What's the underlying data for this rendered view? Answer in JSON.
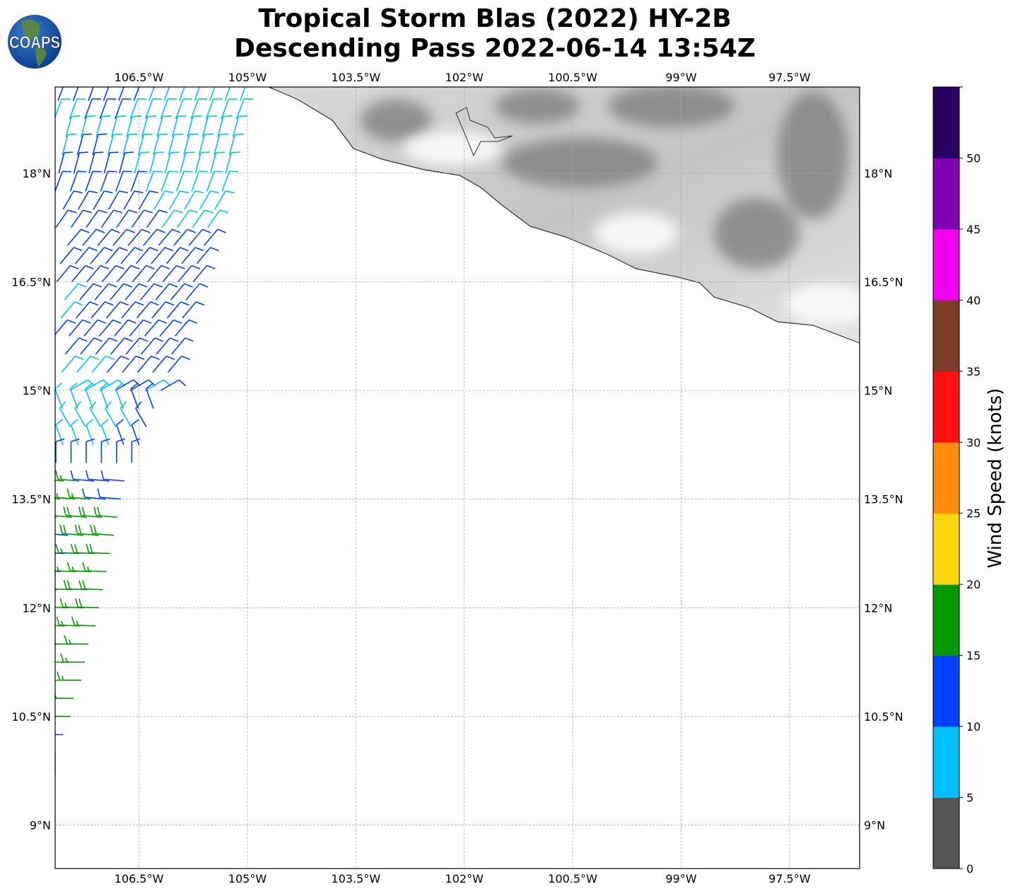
{
  "title": {
    "line1": "Tropical Storm Blas (2022) HY-2B",
    "line2": "Descending Pass 2022-06-14 13:54Z"
  },
  "logo": {
    "text": "COAPS"
  },
  "chart_data": {
    "type": "map-wind-barbs",
    "lon_range": [
      -107.66,
      -96.53
    ],
    "lat_range": [
      8.4,
      19.19
    ],
    "lon_ticks": [
      -106.5,
      -105,
      -103.5,
      -102,
      -100.5,
      -99,
      -97.5
    ],
    "lon_tick_labels": [
      "106.5°W",
      "105°W",
      "103.5°W",
      "102°W",
      "100.5°W",
      "99°W",
      "97.5°W"
    ],
    "lat_ticks": [
      18,
      16.5,
      15,
      13.5,
      12,
      10.5,
      9
    ],
    "lat_tick_labels": [
      "18°N",
      "16.5°N",
      "15°N",
      "13.5°N",
      "12°N",
      "10.5°N",
      "9°N"
    ],
    "grid": true,
    "colorbar": {
      "label": "Wind Speed (knots)",
      "ticks": [
        "0",
        "5",
        "10",
        "15",
        "20",
        "25",
        "30",
        "35",
        "40",
        "45",
        "50"
      ],
      "bounds": [
        0,
        5,
        10,
        15,
        20,
        25,
        30,
        35,
        40,
        45,
        50,
        55
      ],
      "colors": [
        "#555555",
        "#00bfff",
        "#0040ff",
        "#009900",
        "#ffd710",
        "#ff8c0a",
        "#ff1010",
        "#803b28",
        "#f000f0",
        "#8000b0",
        "#2a0060"
      ]
    },
    "barb_spacing_deg": 0.21,
    "barb_rows": [
      {
        "lat": 19.0,
        "lon_east": -105.1,
        "staff_dir": 20,
        "speeds": [
          12,
          12,
          12,
          12,
          12,
          12,
          8,
          8,
          8,
          8,
          8,
          8,
          8
        ]
      },
      {
        "lat": 18.75,
        "lon_east": -105.15,
        "staff_dir": 20,
        "speeds": [
          8,
          8,
          12,
          12,
          12,
          8,
          8,
          8,
          8,
          8,
          8,
          8,
          8
        ]
      },
      {
        "lat": 18.5,
        "lon_east": -105.2,
        "staff_dir": 15,
        "speeds": [
          8,
          8,
          8,
          8,
          8,
          8,
          8,
          8,
          8,
          8,
          8,
          8
        ]
      },
      {
        "lat": 18.25,
        "lon_east": -105.25,
        "staff_dir": 15,
        "speeds": [
          8,
          12,
          12,
          8,
          8,
          8,
          8,
          8,
          8,
          8,
          8,
          8
        ]
      },
      {
        "lat": 18.0,
        "lon_east": -105.3,
        "staff_dir": 15,
        "speeds": [
          12,
          12,
          12,
          12,
          12,
          8,
          8,
          8,
          8,
          8,
          8,
          8
        ]
      },
      {
        "lat": 17.75,
        "lon_east": -105.35,
        "staff_dir": 20,
        "speeds": [
          12,
          12,
          12,
          12,
          12,
          12,
          8,
          8,
          8,
          8,
          8,
          8
        ]
      },
      {
        "lat": 17.5,
        "lon_east": -105.45,
        "staff_dir": 30,
        "speeds": [
          12,
          12,
          12,
          12,
          12,
          12,
          8,
          8,
          8,
          8,
          8
        ]
      },
      {
        "lat": 17.25,
        "lon_east": -105.55,
        "staff_dir": 35,
        "speeds": [
          12,
          12,
          12,
          12,
          12,
          12,
          12,
          8,
          8,
          8,
          8
        ]
      },
      {
        "lat": 17.0,
        "lon_east": -105.6,
        "staff_dir": 40,
        "speeds": [
          12,
          12,
          12,
          12,
          12,
          12,
          12,
          12,
          12,
          12
        ]
      },
      {
        "lat": 16.75,
        "lon_east": -105.7,
        "staff_dir": 40,
        "speeds": [
          12,
          12,
          12,
          12,
          12,
          12,
          12,
          12,
          12,
          12
        ]
      },
      {
        "lat": 16.5,
        "lon_east": -105.75,
        "staff_dir": 40,
        "speeds": [
          12,
          12,
          12,
          12,
          12,
          12,
          12,
          12,
          12,
          12
        ]
      },
      {
        "lat": 16.25,
        "lon_east": -105.85,
        "staff_dir": 40,
        "speeds": [
          8,
          12,
          12,
          12,
          12,
          12,
          12,
          12,
          12
        ]
      },
      {
        "lat": 16.0,
        "lon_east": -105.9,
        "staff_dir": 40,
        "speeds": [
          8,
          12,
          12,
          12,
          12,
          12,
          12,
          12,
          12
        ]
      },
      {
        "lat": 15.75,
        "lon_east": -106.0,
        "staff_dir": 40,
        "speeds": [
          12,
          12,
          12,
          12,
          12,
          12,
          12,
          12,
          12
        ]
      },
      {
        "lat": 15.5,
        "lon_east": -106.05,
        "staff_dir": 40,
        "speeds": [
          12,
          12,
          12,
          12,
          12,
          12,
          12,
          12
        ]
      },
      {
        "lat": 15.25,
        "lon_east": -106.1,
        "staff_dir": 40,
        "speeds": [
          8,
          8,
          8,
          12,
          12,
          12,
          12,
          12
        ]
      },
      {
        "lat": 15.0,
        "lon_east": -106.2,
        "staff_dir": 60,
        "speeds": [
          8,
          8,
          8,
          12,
          12,
          8,
          12
        ]
      },
      {
        "lat": 14.75,
        "lon_east": -106.3,
        "staff_dir": 340,
        "speeds": [
          8,
          8,
          8,
          8,
          8,
          12,
          12
        ]
      },
      {
        "lat": 14.5,
        "lon_east": -106.4,
        "staff_dir": 330,
        "speeds": [
          8,
          8,
          8,
          8,
          8,
          8,
          12
        ]
      },
      {
        "lat": 14.25,
        "lon_east": -106.5,
        "staff_dir": 340,
        "speeds": [
          8,
          8,
          8,
          8,
          12,
          12
        ]
      },
      {
        "lat": 14.0,
        "lon_east": -106.6,
        "staff_dir": 0,
        "speeds": [
          12,
          12,
          12,
          12,
          12,
          12
        ]
      },
      {
        "lat": 13.75,
        "lon_east": -106.7,
        "staff_dir": 275,
        "speeds": [
          16,
          16,
          12,
          12,
          12
        ]
      },
      {
        "lat": 13.5,
        "lon_east": -106.75,
        "staff_dir": 275,
        "speeds": [
          16,
          16,
          16,
          12,
          12
        ]
      },
      {
        "lat": 13.25,
        "lon_east": -106.8,
        "staff_dir": 275,
        "speeds": [
          16,
          18,
          18,
          18,
          18
        ]
      },
      {
        "lat": 13.0,
        "lon_east": -106.85,
        "staff_dir": 275,
        "speeds": [
          12,
          18,
          18,
          18
        ]
      },
      {
        "lat": 12.75,
        "lon_east": -106.9,
        "staff_dir": 272,
        "speeds": [
          12,
          16,
          18,
          18
        ]
      },
      {
        "lat": 12.5,
        "lon_east": -106.95,
        "staff_dir": 272,
        "speeds": [
          12,
          16,
          16,
          16
        ]
      },
      {
        "lat": 12.25,
        "lon_east": -107.0,
        "staff_dir": 272,
        "speeds": [
          16,
          18,
          18,
          18
        ]
      },
      {
        "lat": 12.0,
        "lon_east": -107.05,
        "staff_dir": 272,
        "speeds": [
          16,
          16,
          18
        ]
      },
      {
        "lat": 11.75,
        "lon_east": -107.1,
        "staff_dir": 272,
        "speeds": [
          16,
          16,
          16
        ]
      },
      {
        "lat": 11.5,
        "lon_east": -107.2,
        "staff_dir": 270,
        "speeds": [
          16,
          16,
          16
        ]
      },
      {
        "lat": 11.25,
        "lon_east": -107.25,
        "staff_dir": 270,
        "speeds": [
          16,
          16
        ]
      },
      {
        "lat": 11.0,
        "lon_east": -107.3,
        "staff_dir": 270,
        "speeds": [
          16,
          16
        ]
      },
      {
        "lat": 10.75,
        "lon_east": -107.4,
        "staff_dir": 270,
        "speeds": [
          16,
          16
        ]
      },
      {
        "lat": 10.5,
        "lon_east": -107.45,
        "staff_dir": 270,
        "speeds": [
          16
        ]
      },
      {
        "lat": 10.25,
        "lon_east": -107.55,
        "staff_dir": 270,
        "speeds": [
          12
        ]
      },
      {
        "lat": 10.0,
        "lon_east": -107.66,
        "staff_dir": 180,
        "speeds": [
          8
        ]
      }
    ]
  }
}
